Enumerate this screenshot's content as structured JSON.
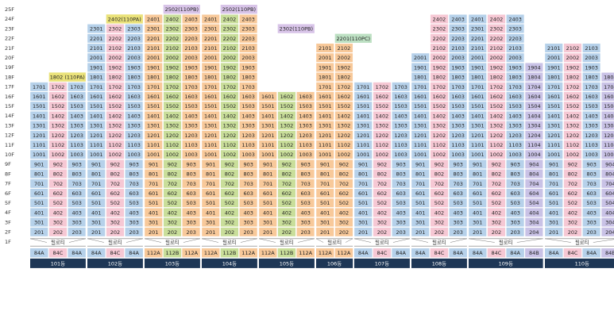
{
  "floors": [
    "25F",
    "24F",
    "23F",
    "22F",
    "21F",
    "20F",
    "19F",
    "18F",
    "17F",
    "16F",
    "15F",
    "14F",
    "13F",
    "12F",
    "11F",
    "10F",
    "9F",
    "8F",
    "7F",
    "6F",
    "5F",
    "4F",
    "3F",
    "2F",
    "1F"
  ],
  "pilotis_label": "필로티",
  "colors": {
    "84A": "#b6d1ea",
    "84B": "#c9c2e6",
    "84C": "#f6c8d4",
    "112A": "#f8c99a",
    "112B": "#c9de9a",
    "110PA": "#eae27a",
    "110PB": "#d8c4e8",
    "110PC": "#bde0c3",
    "building_bar": "#1e3756"
  },
  "buildings": [
    {
      "name": "101동",
      "top": 17,
      "types": [
        "84A",
        "84C",
        "84A"
      ],
      "notes": [
        {
          "floor": 18,
          "text": "1802 (110PA)",
          "color_key": "110PA"
        }
      ]
    },
    {
      "name": "102동",
      "top": 23,
      "types": [
        "84A",
        "84C",
        "84A"
      ],
      "notes": [
        {
          "floor": 24,
          "text": "2402(110PA)",
          "color_key": "110PA"
        }
      ]
    },
    {
      "name": "103동",
      "top": 24,
      "types": [
        "112A",
        "112B",
        "112A"
      ],
      "notes": [
        {
          "floor": 25,
          "text": "2502(110PB)",
          "color_key": "110PB"
        }
      ]
    },
    {
      "name": "104동",
      "top": 24,
      "types": [
        "112A",
        "112B",
        "112A"
      ],
      "notes": [
        {
          "floor": 25,
          "text": "2502(110PB)",
          "color_key": "110PB"
        }
      ]
    },
    {
      "name": "105동",
      "top": 22,
      "types": [
        "112A",
        "112B",
        "112A"
      ],
      "cell_from": 16,
      "notes": [
        {
          "floor": 23,
          "text": "2302(110PB)",
          "color_key": "110PB"
        }
      ]
    },
    {
      "name": "106동",
      "top": 21,
      "types": [
        "112A",
        "112A"
      ],
      "notes": [
        {
          "floor": 22,
          "text": "2201(110PC)",
          "color_key": "110PC"
        }
      ]
    },
    {
      "name": "107동",
      "top": 20,
      "types": [
        "84A",
        "84C",
        "84A"
      ],
      "cell_from": 17,
      "no_cells": [
        [
          20,
          1
        ],
        [
          19,
          1
        ],
        [
          18,
          1
        ]
      ]
    },
    {
      "name": "108동",
      "top": 24,
      "types": [
        "84A",
        "84C",
        "84A"
      ],
      "no_cells": [
        [
          24,
          1
        ],
        [
          23,
          1
        ],
        [
          22,
          1
        ],
        [
          21,
          1
        ]
      ]
    },
    {
      "name": "109동",
      "top": 24,
      "types": [
        "84A",
        "84C",
        "84A",
        "84B"
      ],
      "no_cells": [
        [
          24,
          4
        ],
        [
          23,
          4
        ],
        [
          22,
          4
        ],
        [
          21,
          4
        ],
        [
          20,
          4
        ]
      ]
    },
    {
      "name": "110동",
      "top": 21,
      "types": [
        "84A",
        "84C",
        "84A",
        "84B"
      ],
      "no_cells": [
        [
          21,
          4
        ],
        [
          20,
          4
        ],
        [
          19,
          4
        ]
      ]
    }
  ]
}
